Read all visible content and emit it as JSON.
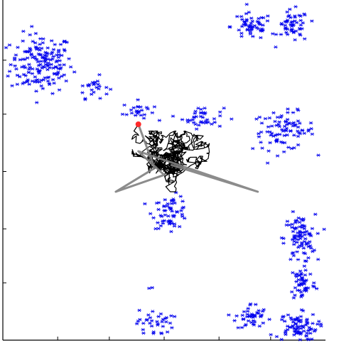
{
  "chart_data": {
    "type": "scatter",
    "title": "",
    "xlabel": "",
    "ylabel": "",
    "xlim": [
      0,
      1
    ],
    "ylim": [
      0,
      1
    ],
    "grid": false,
    "legend": "none",
    "colors": {
      "clusters": "#0000ee",
      "trajectory": "#000000",
      "connector": "#808080",
      "start_point": "#ff2a2a"
    },
    "x_ticks": [
      0.17,
      0.33,
      0.5,
      0.67,
      0.83
    ],
    "y_ticks": [
      0.17,
      0.33,
      0.5,
      0.67,
      0.83
    ],
    "clusters": [
      {
        "center": [
          0.12,
          0.82
        ],
        "spread": [
          0.06,
          0.055
        ],
        "count": 170
      },
      {
        "center": [
          0.28,
          0.75
        ],
        "spread": [
          0.03,
          0.02
        ],
        "count": 25
      },
      {
        "center": [
          0.42,
          0.68
        ],
        "spread": [
          0.03,
          0.018
        ],
        "count": 25
      },
      {
        "center": [
          0.62,
          0.66
        ],
        "spread": [
          0.04,
          0.02
        ],
        "count": 40
      },
      {
        "center": [
          0.87,
          0.62
        ],
        "spread": [
          0.06,
          0.035
        ],
        "count": 90
      },
      {
        "center": [
          0.77,
          0.93
        ],
        "spread": [
          0.04,
          0.025
        ],
        "count": 55
      },
      {
        "center": [
          0.9,
          0.93
        ],
        "spread": [
          0.03,
          0.03
        ],
        "count": 55
      },
      {
        "center": [
          0.52,
          0.38
        ],
        "spread": [
          0.035,
          0.03
        ],
        "count": 60
      },
      {
        "center": [
          0.92,
          0.3
        ],
        "spread": [
          0.03,
          0.045
        ],
        "count": 90
      },
      {
        "center": [
          0.93,
          0.17
        ],
        "spread": [
          0.025,
          0.035
        ],
        "count": 50
      },
      {
        "center": [
          0.77,
          0.07
        ],
        "spread": [
          0.03,
          0.025
        ],
        "count": 45
      },
      {
        "center": [
          0.91,
          0.04
        ],
        "spread": [
          0.04,
          0.025
        ],
        "count": 80
      },
      {
        "center": [
          0.47,
          0.05
        ],
        "spread": [
          0.035,
          0.025
        ],
        "count": 35
      },
      {
        "center": [
          0.44,
          0.16
        ],
        "spread": [
          0.02,
          0.005
        ],
        "count": 2
      }
    ],
    "trajectory": {
      "start": [
        0.42,
        0.64
      ],
      "segments": [
        {
          "anchor": [
            0.52,
            0.53
          ],
          "radius": [
            0.12,
            0.09
          ],
          "points": 900
        }
      ],
      "connector_path": [
        [
          0.42,
          0.64
        ],
        [
          0.47,
          0.51
        ],
        [
          0.35,
          0.44
        ],
        [
          0.5,
          0.49
        ],
        [
          0.42,
          0.56
        ],
        [
          0.79,
          0.44
        ],
        [
          0.52,
          0.52
        ]
      ]
    },
    "start_marker": [
      0.42,
      0.64
    ]
  }
}
